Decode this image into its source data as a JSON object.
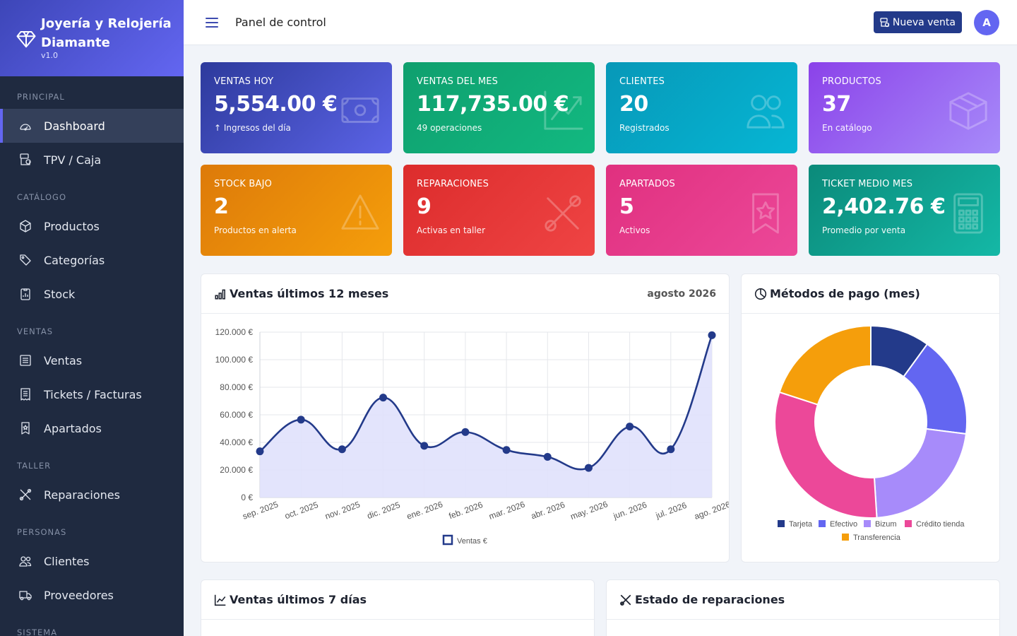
{
  "brand": {
    "name": "Joyería y Relojería Diamante",
    "version": "v1.0"
  },
  "sidebar": {
    "sections": [
      {
        "title": "PRINCIPAL",
        "items": [
          {
            "label": "Dashboard",
            "icon": "gauge-icon",
            "active": true
          },
          {
            "label": "TPV / Caja",
            "icon": "cash-register-icon"
          }
        ]
      },
      {
        "title": "CATÁLOGO",
        "items": [
          {
            "label": "Productos",
            "icon": "box-icon"
          },
          {
            "label": "Categorías",
            "icon": "tags-icon"
          },
          {
            "label": "Stock",
            "icon": "clipboard-data-icon"
          }
        ]
      },
      {
        "title": "VENTAS",
        "items": [
          {
            "label": "Ventas",
            "icon": "list-icon"
          },
          {
            "label": "Tickets / Facturas",
            "icon": "receipt-icon"
          },
          {
            "label": "Apartados",
            "icon": "bookmark-star-icon"
          }
        ]
      },
      {
        "title": "TALLER",
        "items": [
          {
            "label": "Reparaciones",
            "icon": "tools-icon"
          }
        ]
      },
      {
        "title": "PERSONAS",
        "items": [
          {
            "label": "Clientes",
            "icon": "people-icon"
          },
          {
            "label": "Proveedores",
            "icon": "truck-icon"
          }
        ]
      },
      {
        "title": "SISTEMA",
        "items": []
      }
    ]
  },
  "topbar": {
    "title": "Panel de control",
    "new_sale_label": "Nueva venta",
    "avatar_initial": "A"
  },
  "cards": [
    {
      "label": "VENTAS HOY",
      "value": "5,554.00 €",
      "sub": "↑ Ingresos del día",
      "icon": "cash-icon"
    },
    {
      "label": "VENTAS DEL MES",
      "value": "117,735.00 €",
      "sub": "49 operaciones",
      "icon": "graph-up-icon"
    },
    {
      "label": "CLIENTES",
      "value": "20",
      "sub": "Registrados",
      "icon": "people-icon"
    },
    {
      "label": "PRODUCTOS",
      "value": "37",
      "sub": "En catálogo",
      "icon": "box-icon"
    },
    {
      "label": "STOCK BAJO",
      "value": "2",
      "sub": "Productos en alerta",
      "icon": "warning-icon"
    },
    {
      "label": "REPARACIONES",
      "value": "9",
      "sub": "Activas en taller",
      "icon": "tools-icon"
    },
    {
      "label": "APARTADOS",
      "value": "5",
      "sub": "Activos",
      "icon": "bookmark-star-icon"
    },
    {
      "label": "TICKET MEDIO MES",
      "value": "2,402.76 €",
      "sub": "Promedio por venta",
      "icon": "calculator-icon"
    }
  ],
  "panels": {
    "sales12": {
      "title": "Ventas últimos 12 meses",
      "period": "agosto 2026"
    },
    "payments": {
      "title": "Métodos de pago (mes)"
    },
    "sales7": {
      "title": "Ventas últimos 7 días"
    },
    "repairs": {
      "title": "Estado de reparaciones"
    }
  },
  "chart_data": [
    {
      "type": "line",
      "categories": [
        "sep. 2025",
        "oct. 2025",
        "nov. 2025",
        "dic. 2025",
        "ene. 2026",
        "feb. 2026",
        "mar. 2026",
        "abr. 2026",
        "may. 2026",
        "jun. 2026",
        "jul. 2026",
        "ago. 2026"
      ],
      "series": [
        {
          "name": "Ventas €",
          "values": [
            33500,
            56500,
            35000,
            72500,
            37500,
            47500,
            34500,
            29500,
            21500,
            51500,
            35000,
            117735
          ],
          "color": "#233a8a",
          "fill": "#e0e1fc"
        }
      ],
      "yticks": [
        "0 €",
        "20.000 €",
        "40.000 €",
        "60.000 €",
        "80.000 €",
        "100.000 €",
        "120.000 €"
      ],
      "ylim": [
        0,
        120000
      ],
      "grid": true,
      "legend": "bottom"
    },
    {
      "type": "pie",
      "labels": [
        "Tarjeta",
        "Efectivo",
        "Bizum",
        "Crédito tienda",
        "Transferencia"
      ],
      "values": [
        10,
        17,
        22,
        31,
        20
      ],
      "colors": [
        "#233a8a",
        "#6366f1",
        "#a78bfa",
        "#ec4899",
        "#f59e0b"
      ],
      "legend": "bottom"
    }
  ]
}
